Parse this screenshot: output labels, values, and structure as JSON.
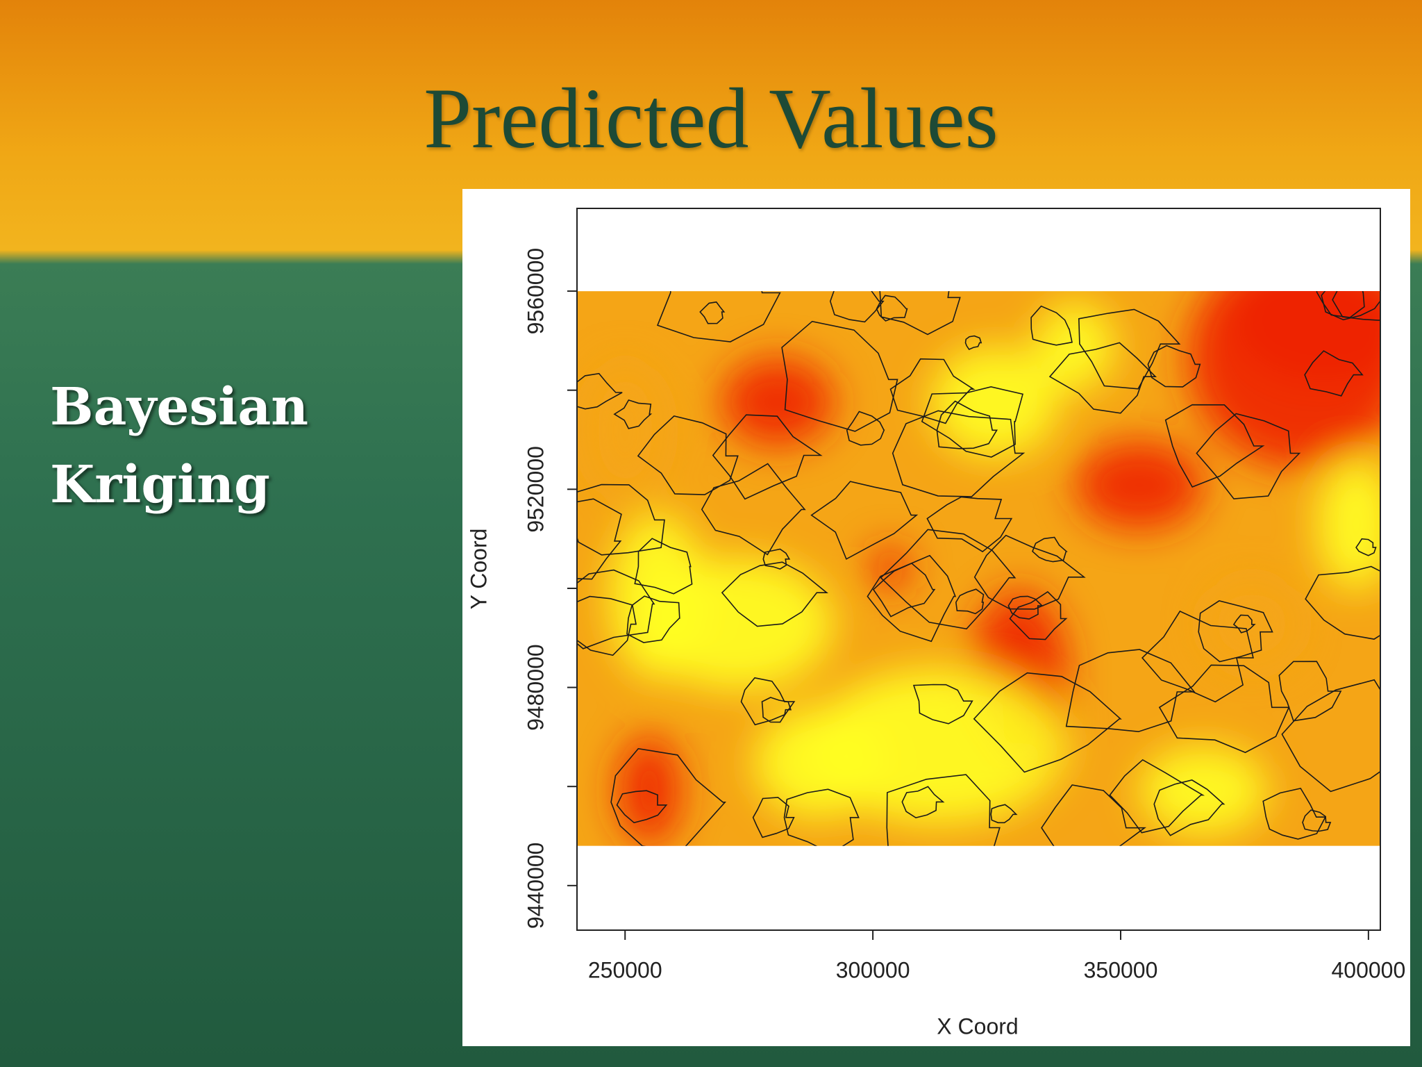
{
  "slide": {
    "title": "Predicted Values",
    "side_text": [
      "Bayesian",
      "Kriging"
    ]
  },
  "chart_data": {
    "type": "contour",
    "x_label": "X Coord",
    "y_label": "Y Coord",
    "xlim": [
      240300,
      402400
    ],
    "ylim": [
      9431000,
      9576700
    ],
    "xticks": [
      250000,
      300000,
      350000,
      400000
    ],
    "yticks": [
      9440000,
      9480000,
      9520000,
      9560000
    ],
    "yminor_ticks": [
      9460000,
      9500000,
      9540000
    ],
    "raster_xlim": [
      240300,
      402400
    ],
    "raster_ylim": [
      9448000,
      9560000
    ],
    "colors": {
      "low": "#ee2400",
      "mid": "#f5a516",
      "high": "#ffff22"
    }
  }
}
